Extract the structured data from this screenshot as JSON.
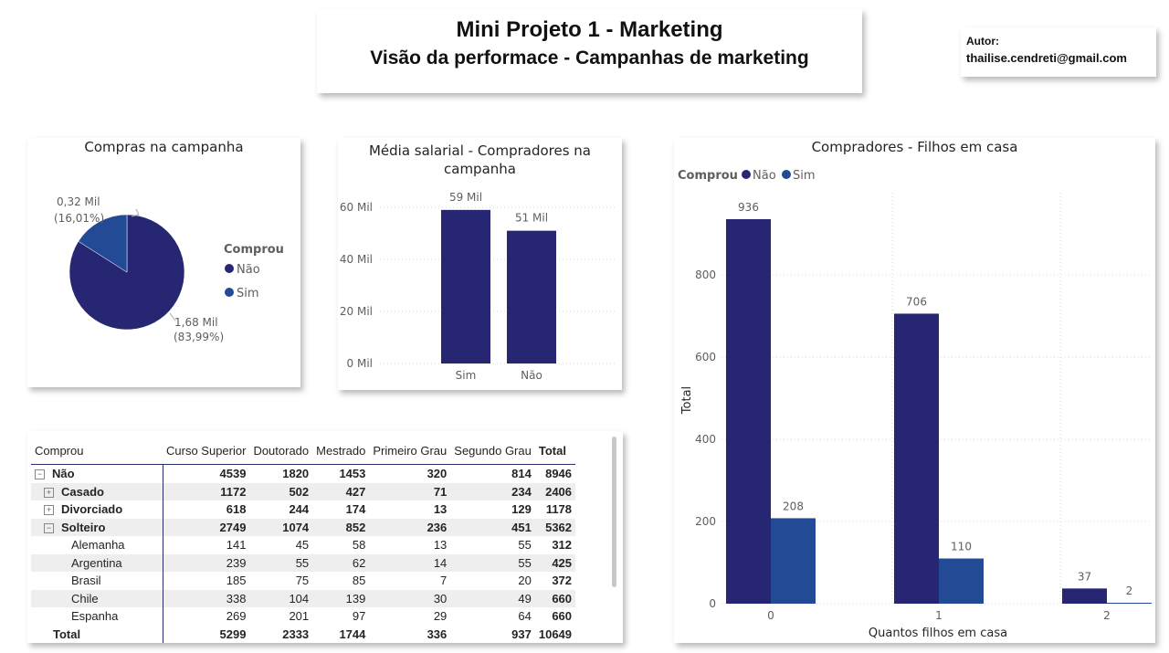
{
  "header": {
    "title": "Mini Projeto 1 - Marketing",
    "subtitle": "Visão da performace - Campanhas de marketing"
  },
  "author": {
    "label": "Autor:",
    "email": "thailise.cendreti@gmail.com"
  },
  "colors": {
    "nao": "#262673",
    "sim": "#234a94"
  },
  "chart_data": [
    {
      "type": "pie",
      "title": "Compras na campanha",
      "legend_title": "Comprou",
      "legend_position": "right",
      "slices": [
        {
          "name": "Não",
          "value": 1.68,
          "label": "1,68 Mil",
          "pct": "(83,99%)",
          "color": "#262673"
        },
        {
          "name": "Sim",
          "value": 0.32,
          "label": "0,32 Mil",
          "pct": "(16,01%)",
          "color": "#234a94"
        }
      ]
    },
    {
      "type": "bar",
      "title": "Média salarial - Compradores na campanha",
      "categories": [
        "Sim",
        "Não"
      ],
      "values": [
        59,
        51
      ],
      "data_labels": [
        "59 Mil",
        "51 Mil"
      ],
      "y_ticks": [
        "0 Mil",
        "20 Mil",
        "40 Mil",
        "60 Mil"
      ],
      "ylim": [
        0,
        60
      ],
      "color": "#262673",
      "grid": true
    },
    {
      "type": "bar",
      "title": "Compradores - Filhos em casa",
      "legend_title": "Comprou",
      "legend_position": "top-left",
      "categories": [
        "0",
        "1",
        "2"
      ],
      "series": [
        {
          "name": "Não",
          "values": [
            936,
            706,
            37
          ],
          "color": "#262673"
        },
        {
          "name": "Sim",
          "values": [
            208,
            110,
            2
          ],
          "color": "#234a94"
        }
      ],
      "xlabel": "Quantos filhos em casa",
      "ylabel": "Total",
      "y_ticks": [
        0,
        200,
        400,
        600,
        800
      ],
      "ylim": [
        0,
        936
      ],
      "grid": true
    },
    {
      "type": "table",
      "columns": [
        "Comprou",
        "Curso Superior",
        "Doutorado",
        "Mestrado",
        "Primeiro Grau",
        "Segundo Grau",
        "Total"
      ],
      "rows": [
        {
          "label": "Não",
          "expander": "minus",
          "level": 0,
          "bold": true,
          "values": [
            "4539",
            "1820",
            "1453",
            "320",
            "814",
            "8946"
          ]
        },
        {
          "label": "Casado",
          "expander": "plus",
          "level": 1,
          "bold": true,
          "values": [
            "1172",
            "502",
            "427",
            "71",
            "234",
            "2406"
          ]
        },
        {
          "label": "Divorciado",
          "expander": "plus",
          "level": 1,
          "bold": true,
          "values": [
            "618",
            "244",
            "174",
            "13",
            "129",
            "1178"
          ]
        },
        {
          "label": "Solteiro",
          "expander": "minus",
          "level": 1,
          "bold": true,
          "values": [
            "2749",
            "1074",
            "852",
            "236",
            "451",
            "5362"
          ]
        },
        {
          "label": "Alemanha",
          "expander": "",
          "level": 2,
          "bold": false,
          "values": [
            "141",
            "45",
            "58",
            "13",
            "55",
            "312"
          ]
        },
        {
          "label": "Argentina",
          "expander": "",
          "level": 2,
          "bold": false,
          "values": [
            "239",
            "55",
            "62",
            "14",
            "55",
            "425"
          ]
        },
        {
          "label": "Brasil",
          "expander": "",
          "level": 2,
          "bold": false,
          "values": [
            "185",
            "75",
            "85",
            "7",
            "20",
            "372"
          ]
        },
        {
          "label": "Chile",
          "expander": "",
          "level": 2,
          "bold": false,
          "values": [
            "338",
            "104",
            "139",
            "30",
            "49",
            "660"
          ]
        },
        {
          "label": "Espanha",
          "expander": "",
          "level": 2,
          "bold": false,
          "values": [
            "269",
            "201",
            "97",
            "29",
            "64",
            "660"
          ]
        },
        {
          "label": "Total",
          "expander": "",
          "level": 0,
          "bold": true,
          "values": [
            "5299",
            "2333",
            "1744",
            "336",
            "937",
            "10649"
          ]
        }
      ]
    }
  ]
}
